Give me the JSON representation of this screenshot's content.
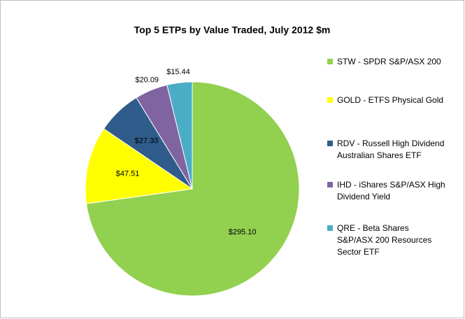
{
  "chart_data": {
    "type": "pie",
    "title": "Top 5 ETPs by Value Traded, July 2012 $m",
    "categories": [
      "STW - SPDR S&P/ASX 200",
      "GOLD - ETFS Physical Gold",
      "RDV - Russell High Dividend Australian Shares ETF",
      "IHD - iShares S&P/ASX High Dividend Yield",
      "QRE - Beta Shares S&P/ASX 200 Resources Sector ETF"
    ],
    "values": [
      295.1,
      47.51,
      27.33,
      20.09,
      15.44
    ],
    "value_labels": [
      "$295.10",
      "$47.51",
      "$27.33",
      "$20.09",
      "$15.44"
    ],
    "colors": [
      "#92d050",
      "#ffff00",
      "#2f5c8a",
      "#8064a2",
      "#4bacc6"
    ],
    "legend": "right"
  }
}
